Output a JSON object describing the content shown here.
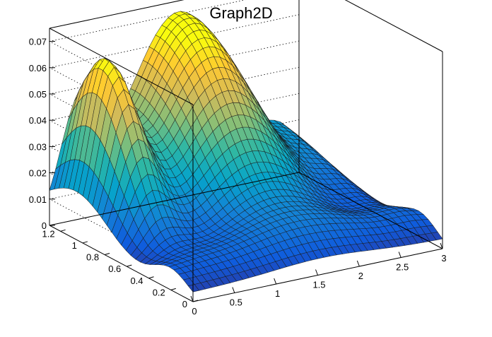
{
  "chart_data": {
    "type": "surface",
    "title": "Graph2D",
    "xlim": [
      0,
      3
    ],
    "ylim": [
      0,
      1.3
    ],
    "zlim": [
      0,
      0.075
    ],
    "x_ticks": [
      "0",
      "0.5",
      "1",
      "1.5",
      "2",
      "2.5",
      "3"
    ],
    "x_tick_values": [
      0,
      0.5,
      1,
      1.5,
      2,
      2.5,
      3
    ],
    "y_ticks": [
      "0",
      "0.2",
      "0.4",
      "0.6",
      "0.8",
      "1",
      "1.2"
    ],
    "y_tick_values": [
      0,
      0.2,
      0.4,
      0.6,
      0.8,
      1.0,
      1.2
    ],
    "z_ticks": [
      "0",
      "0.01",
      "0.02",
      "0.03",
      "0.04",
      "0.05",
      "0.06",
      "0.07"
    ],
    "z_tick_values": [
      0,
      0.01,
      0.02,
      0.03,
      0.04,
      0.05,
      0.06,
      0.07
    ],
    "grid": true,
    "colormap": [
      "#352a87",
      "#0f5cdd",
      "#1481d6",
      "#06a4ca",
      "#2eb7a4",
      "#87bf77",
      "#d1bb59",
      "#fec832",
      "#f9fb0e"
    ],
    "peaks": [
      {
        "x": 0.35,
        "y": 1.05,
        "z": 0.057
      },
      {
        "x": 1.55,
        "y": 1.28,
        "z": 0.071
      }
    ]
  }
}
